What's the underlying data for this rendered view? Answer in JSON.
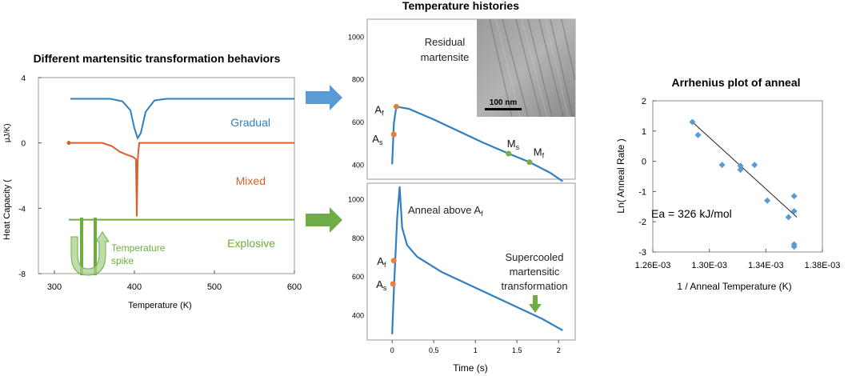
{
  "colors": {
    "blue": "#2f7fc1",
    "orange": "#d9602a",
    "green": "#6cae3c",
    "arrow_blue": "#5b9bd5",
    "arrow_green": "#70ad47",
    "pt_orange": "#e8803a",
    "pt_green": "#72b04a",
    "diamond": "#5b9bd5",
    "line": "#222222",
    "frame": "#999999"
  },
  "chart_data": [
    {
      "type": "line",
      "title": "Different martensitic transformation behaviors",
      "xlabel": "Temperature (K)",
      "ylabel": "Heat Capacity (μJ/K)",
      "ylabel_text": "Heat Capacity (",
      "ylabel_unit": "μJ/K)",
      "xlim": [
        280,
        600
      ],
      "ylim": [
        -8,
        4
      ],
      "xticks": [
        "300",
        "400",
        "500",
        "600"
      ],
      "yticks": [
        "4",
        "0",
        "-4",
        "-8"
      ],
      "series": [
        {
          "name": "Gradual",
          "label": "Gradual",
          "x": [
            320,
            370,
            385,
            395,
            400,
            404,
            408,
            414,
            425,
            440,
            500,
            600
          ],
          "y": [
            2.7,
            2.7,
            2.55,
            2.0,
            0.9,
            0.3,
            0.6,
            1.9,
            2.6,
            2.7,
            2.7,
            2.7
          ]
        },
        {
          "name": "Mixed",
          "label": "Mixed",
          "x": [
            318,
            340,
            360,
            372,
            382,
            392,
            398,
            402,
            403,
            404,
            405,
            406,
            600
          ],
          "y": [
            0.0,
            0.0,
            0.0,
            -0.2,
            -0.55,
            -0.75,
            -0.85,
            -1.0,
            -4.5,
            -1.2,
            -0.5,
            0.0,
            0.0
          ]
        },
        {
          "name": "Explosive",
          "label": "Explosive",
          "x": [
            318,
            400,
            500,
            600
          ],
          "y": [
            -4.7,
            -4.7,
            -4.7,
            -4.7
          ]
        }
      ],
      "annotations": {
        "spike_label_1": "Temperature",
        "spike_label_2": "spike"
      }
    },
    {
      "type": "line",
      "title": "Temperature histories",
      "subtitle_top": "Residual martensite",
      "subtitle_top_1": "Residual",
      "subtitle_top_2": "martensite",
      "scale_bar": "100 nm",
      "xlabel": "Time (s)",
      "ylabel": "",
      "xlim": [
        -0.3,
        2.2
      ],
      "ylim_top": [
        330,
        1080
      ],
      "ylim_bottom": [
        270,
        1080
      ],
      "xticks": [
        "0",
        "0.5",
        "1",
        "1.5",
        "2"
      ],
      "yticks_top": [
        "1000",
        "800",
        "600",
        "400"
      ],
      "yticks_bottom": [
        "1000",
        "800",
        "600",
        "400"
      ],
      "top_curve": {
        "x": [
          0.0,
          0.02,
          0.05,
          0.2,
          0.5,
          0.8,
          1.1,
          1.4,
          1.65,
          1.9,
          2.05
        ],
        "y": [
          400,
          590,
          670,
          660,
          610,
          555,
          500,
          450,
          410,
          360,
          320
        ]
      },
      "top_points": [
        {
          "label": "A",
          "sub": "f",
          "x": 0.05,
          "y": 670,
          "color": "orange"
        },
        {
          "label": "A",
          "sub": "s",
          "x": 0.02,
          "y": 540,
          "color": "orange"
        },
        {
          "label": "M",
          "sub": "s",
          "x": 1.4,
          "y": 450,
          "color": "green"
        },
        {
          "label": "M",
          "sub": "f",
          "x": 1.65,
          "y": 410,
          "color": "green"
        }
      ],
      "bottom_curve": {
        "x": [
          0.0,
          0.02,
          0.06,
          0.09,
          0.12,
          0.18,
          0.3,
          0.6,
          1.0,
          1.4,
          1.8,
          2.05
        ],
        "y": [
          300,
          520,
          900,
          1060,
          850,
          760,
          700,
          620,
          540,
          460,
          380,
          320
        ]
      },
      "bottom_points": [
        {
          "label": "A",
          "sub": "f",
          "x": 0.02,
          "y": 680,
          "color": "orange"
        },
        {
          "label": "A",
          "sub": "s",
          "x": 0.01,
          "y": 560,
          "color": "orange"
        }
      ],
      "bottom_annotations": {
        "anneal_label": "Anneal above A",
        "anneal_sub": "f",
        "supercooled_1": "Supercooled",
        "supercooled_2": "martensitic",
        "supercooled_3": "transformation"
      }
    },
    {
      "type": "scatter",
      "title": "Arrhenius plot of anneal",
      "xlabel": "1 / Anneal Temperature (K)",
      "ylabel": "Ln( Anneal Rate )",
      "xlim": [
        0.00126,
        0.00138
      ],
      "ylim": [
        -3,
        2
      ],
      "xticks": [
        "1.26E-03",
        "1.30E-03",
        "1.34E-03",
        "1.38E-03"
      ],
      "yticks": [
        "2",
        "1",
        "0",
        "-1",
        "-2",
        "-3"
      ],
      "x": [
        0.001288,
        0.001292,
        0.001309,
        0.001322,
        0.001322,
        0.001332,
        0.001341,
        0.001356,
        0.00136,
        0.00136,
        0.00136,
        0.00136
      ],
      "y": [
        1.3,
        0.87,
        -0.12,
        -0.15,
        -0.28,
        -0.12,
        -1.3,
        -1.85,
        -1.15,
        -1.65,
        -2.75,
        -2.82
      ],
      "fit": {
        "x": [
          0.001288,
          0.001362
        ],
        "y": [
          1.3,
          -1.85
        ]
      },
      "annotation": "Ea = 326 kJ/mol"
    }
  ]
}
